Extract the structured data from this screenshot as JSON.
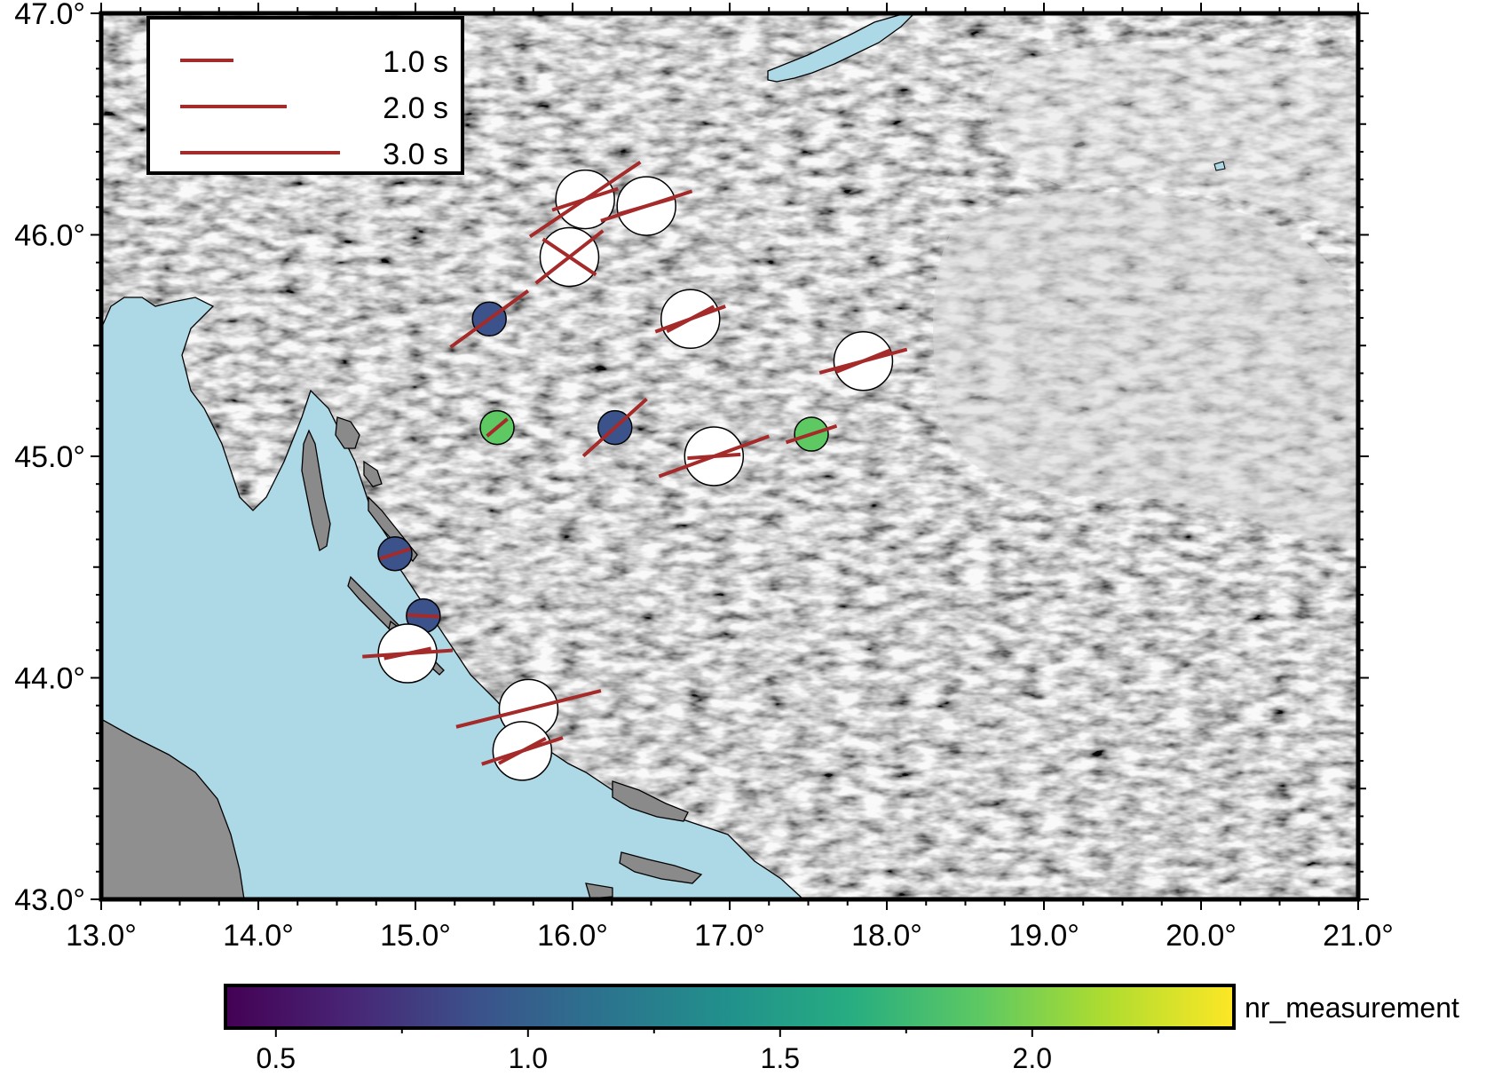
{
  "chart_data": {
    "type": "map",
    "region": {
      "lon": [
        13.0,
        21.0
      ],
      "lat": [
        43.0,
        47.0
      ]
    },
    "x_ticks": [
      {
        "value": 13.0,
        "label": "13.0°"
      },
      {
        "value": 14.0,
        "label": "14.0°"
      },
      {
        "value": 15.0,
        "label": "15.0°"
      },
      {
        "value": 16.0,
        "label": "16.0°"
      },
      {
        "value": 17.0,
        "label": "17.0°"
      },
      {
        "value": 18.0,
        "label": "18.0°"
      },
      {
        "value": 19.0,
        "label": "19.0°"
      },
      {
        "value": 20.0,
        "label": "20.0°"
      },
      {
        "value": 21.0,
        "label": "21.0°"
      }
    ],
    "y_ticks": [
      {
        "value": 43.0,
        "label": "43.0°"
      },
      {
        "value": 44.0,
        "label": "44.0°"
      },
      {
        "value": 45.0,
        "label": "45.0°"
      },
      {
        "value": 46.0,
        "label": "46.0°"
      },
      {
        "value": 47.0,
        "label": "47.0°"
      }
    ],
    "legend": {
      "placement": "top-left",
      "entries": [
        {
          "delay": 1.0,
          "label": "1.0 s"
        },
        {
          "delay": 2.0,
          "label": "2.0 s"
        },
        {
          "delay": 3.0,
          "label": "3.0 s"
        }
      ]
    },
    "colorbar": {
      "label": "nr_measurement",
      "range": [
        0.4,
        2.4
      ],
      "colormap": "viridis",
      "ticks": [
        {
          "value": 0.5,
          "label": "0.5"
        },
        {
          "value": 1.0,
          "label": "1.0"
        },
        {
          "value": 1.5,
          "label": "1.5"
        },
        {
          "value": 2.0,
          "label": "2.0"
        }
      ]
    },
    "stations": [
      {
        "lon": 15.47,
        "lat": 45.62,
        "nr_measurement": 1,
        "splits": [
          {
            "phi": 54,
            "dt": 1.8
          }
        ]
      },
      {
        "lon": 15.52,
        "lat": 45.13,
        "nr_measurement": 2,
        "splits": [
          {
            "phi": 50,
            "dt": 0.5
          }
        ]
      },
      {
        "lon": 16.27,
        "lat": 45.13,
        "nr_measurement": 1,
        "splits": [
          {
            "phi": 48,
            "dt": 1.6
          }
        ]
      },
      {
        "lon": 17.52,
        "lat": 45.1,
        "nr_measurement": 2,
        "splits": [
          {
            "phi": 72,
            "dt": 1.0
          }
        ]
      },
      {
        "lon": 14.87,
        "lat": 44.56,
        "nr_measurement": 1,
        "splits": [
          {
            "phi": 72,
            "dt": 0.6
          }
        ]
      },
      {
        "lon": 15.05,
        "lat": 44.28,
        "nr_measurement": 1,
        "splits": [
          {
            "phi": 93,
            "dt": 0.6
          }
        ]
      },
      {
        "lon": 16.08,
        "lat": 46.16,
        "nr_measurement": 0,
        "splits": [
          {
            "phi": 56,
            "dt": 2.5
          },
          {
            "phi": 72,
            "dt": 1.3
          }
        ]
      },
      {
        "lon": 16.47,
        "lat": 46.13,
        "nr_measurement": 0,
        "splits": [
          {
            "phi": 72,
            "dt": 1.8
          },
          {
            "phi": 74,
            "dt": 1.1
          }
        ]
      },
      {
        "lon": 15.98,
        "lat": 45.9,
        "nr_measurement": 0,
        "splits": [
          {
            "phi": 52,
            "dt": 1.6
          },
          {
            "phi": 124,
            "dt": 1.2
          }
        ]
      },
      {
        "lon": 16.75,
        "lat": 45.62,
        "nr_measurement": 0,
        "splits": [
          {
            "phi": 62,
            "dt": 1.0
          },
          {
            "phi": 70,
            "dt": 1.4
          }
        ]
      },
      {
        "lon": 17.85,
        "lat": 45.43,
        "nr_measurement": 0,
        "splits": [
          {
            "phi": 68,
            "dt": 1.1
          },
          {
            "phi": 75,
            "dt": 1.7
          }
        ]
      },
      {
        "lon": 16.9,
        "lat": 45.0,
        "nr_measurement": 0,
        "splits": [
          {
            "phi": 70,
            "dt": 2.2
          },
          {
            "phi": 86,
            "dt": 1.0
          }
        ]
      },
      {
        "lon": 14.95,
        "lat": 44.11,
        "nr_measurement": 0,
        "splits": [
          {
            "phi": 86,
            "dt": 1.7
          },
          {
            "phi": 78,
            "dt": 0.9
          }
        ]
      },
      {
        "lon": 15.72,
        "lat": 43.86,
        "nr_measurement": 0,
        "splits": [
          {
            "phi": 76,
            "dt": 2.8
          }
        ]
      },
      {
        "lon": 15.68,
        "lat": 43.67,
        "nr_measurement": 0,
        "splits": [
          {
            "phi": 62,
            "dt": 1.0
          },
          {
            "phi": 72,
            "dt": 1.6
          }
        ]
      }
    ]
  },
  "colors": {
    "sea": "#add8e6",
    "split_line": "#a52a2a",
    "empty_station": "#ffffff",
    "frame": "#000000"
  }
}
